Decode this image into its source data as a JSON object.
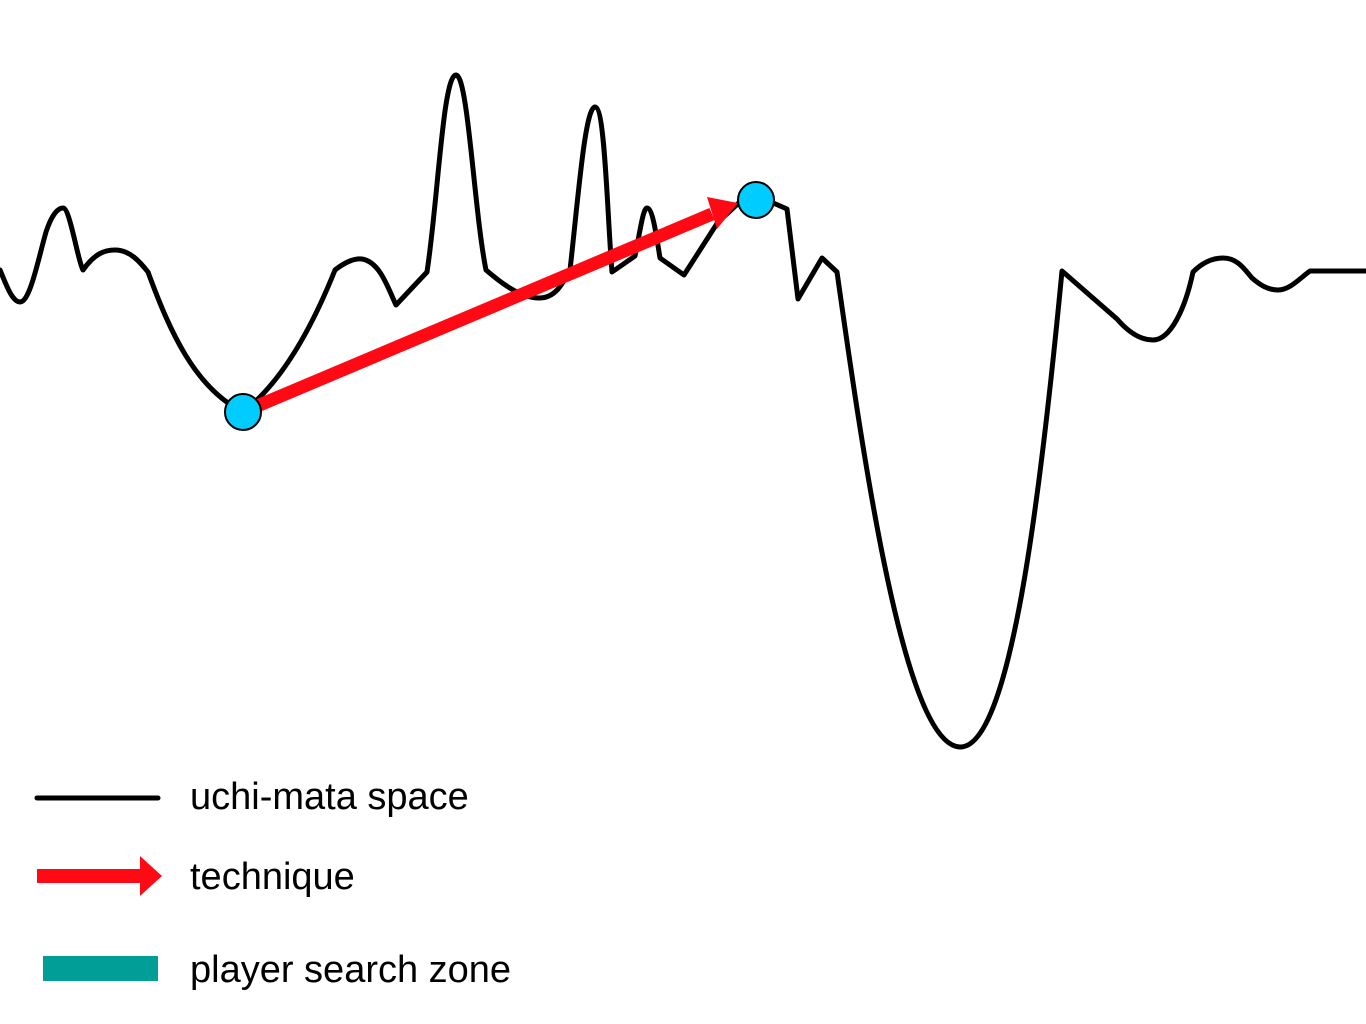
{
  "colors": {
    "landscape": "#000000",
    "technique": "#ff0a14",
    "marker": "#00ccff",
    "search_zone": "#009e96",
    "background": "#ffffff"
  },
  "legend": {
    "landscape_label": "uchi-mata space",
    "technique_label": "technique",
    "search_zone_label": "player search zone"
  }
}
